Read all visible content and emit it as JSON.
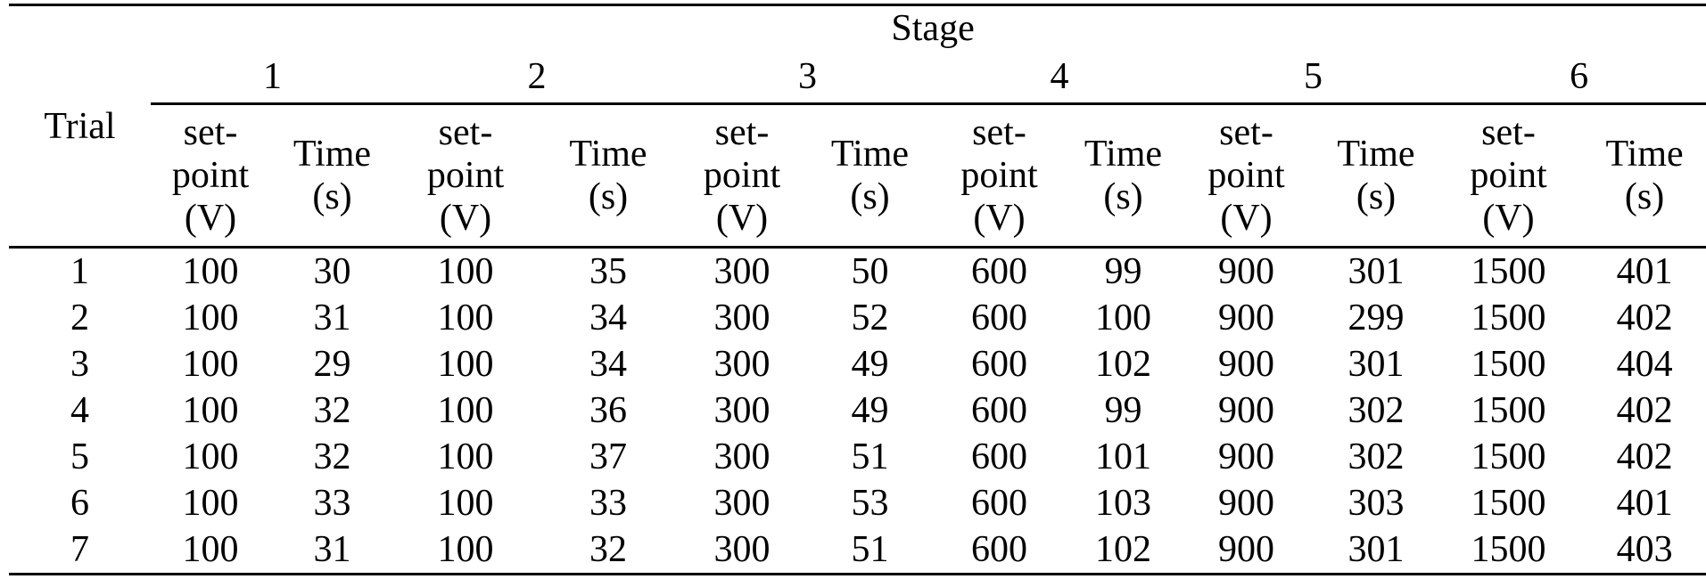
{
  "table": {
    "trial_header": "Trial",
    "stage_header": "Stage",
    "stage_numbers": [
      "1",
      "2",
      "3",
      "4",
      "5",
      "6"
    ],
    "column_labels": {
      "setpoint": "set-\npoint\n(V)",
      "time": "Time\n(s)"
    },
    "rows": [
      {
        "trial": "1",
        "values": [
          "100",
          "30",
          "100",
          "35",
          "300",
          "50",
          "600",
          "99",
          "900",
          "301",
          "1500",
          "401"
        ]
      },
      {
        "trial": "2",
        "values": [
          "100",
          "31",
          "100",
          "34",
          "300",
          "52",
          "600",
          "100",
          "900",
          "299",
          "1500",
          "402"
        ]
      },
      {
        "trial": "3",
        "values": [
          "100",
          "29",
          "100",
          "34",
          "300",
          "49",
          "600",
          "102",
          "900",
          "301",
          "1500",
          "404"
        ]
      },
      {
        "trial": "4",
        "values": [
          "100",
          "32",
          "100",
          "36",
          "300",
          "49",
          "600",
          "99",
          "900",
          "302",
          "1500",
          "402"
        ]
      },
      {
        "trial": "5",
        "values": [
          "100",
          "32",
          "100",
          "37",
          "300",
          "51",
          "600",
          "101",
          "900",
          "302",
          "1500",
          "402"
        ]
      },
      {
        "trial": "6",
        "values": [
          "100",
          "33",
          "100",
          "33",
          "300",
          "53",
          "600",
          "103",
          "900",
          "303",
          "1500",
          "401"
        ]
      },
      {
        "trial": "7",
        "values": [
          "100",
          "31",
          "100",
          "32",
          "300",
          "51",
          "600",
          "102",
          "900",
          "301",
          "1500",
          "403"
        ]
      }
    ],
    "colors": {
      "text": "#000000",
      "background": "#ffffff",
      "rule": "#000000"
    }
  }
}
